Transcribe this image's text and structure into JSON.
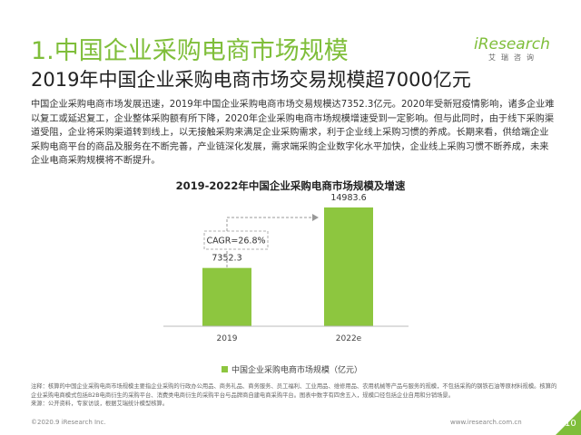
{
  "header": {
    "section_title": "1.中国企业采购电商市场规模",
    "subtitle": "2019年中国企业采购电商市场交易规模超7000亿元"
  },
  "logo": {
    "brand": "iResearch",
    "brand_cn": "艾瑞咨询"
  },
  "body_text": "中国企业采购电商市场发展迅速，2019年中国企业采购电商市场交易规模达7352.3亿元。2020年受新冠疫情影响，诸多企业难以复工或延迟复工，企业整体采购额有所下降，2020年企业采购电商市场规模增速受到一定影响。但与此同时，由于线下采购渠道受阻，企业将采购渠道转到线上，以无接触采购来满足企业采购需求，利于企业线上采购习惯的养成。长期来看，供给端企业采购电商平台的商品及服务在不断完善，产业链深化发展，需求端采购企业数字化水平加快，企业线上采购习惯不断养成，未来企业电商采购规模将不断提升。",
  "chart_data": {
    "type": "bar",
    "title": "2019-2022年中国企业采购电商市场规模及增速",
    "categories": [
      "2019",
      "2022e"
    ],
    "series": [
      {
        "name": "中国企业采购电商市场规模（亿元）",
        "values": [
          7352.3,
          14983.6
        ]
      }
    ],
    "value_labels": [
      "7352.3",
      "14983.6"
    ],
    "annotation": "CAGR=26.8%",
    "legend_position": "bottom",
    "grid": false,
    "ylim": [
      0,
      16000
    ],
    "bar_color": "#8dc63f"
  },
  "notes": {
    "line1": "注释：核算的中国企业采购电商市场规模主要指企业采购的行政办公用品、商务礼品、商务服务、员工福利、工业用品、维修用品、农用机械等产品与服务的规模，不包括采购的钢铁石油等原材料规模。核算的企业采购电商模式包括B2B电商衍生的采购平台、消费类电商衍生的采购平台与品牌商自建电商采购平台。图表中数字有四舍五入，规模口径包括企业自用和分销场景。",
    "line2": "来源：公开资料，专家访谈，根据艾瑞统计模型核算。"
  },
  "footer": {
    "copyright": "©2020.9 iResearch Inc.",
    "website": "www.iresearch.com.cn",
    "page_number": "10"
  },
  "colors": {
    "accent": "#7fbe3a",
    "bar": "#8dc63f"
  }
}
